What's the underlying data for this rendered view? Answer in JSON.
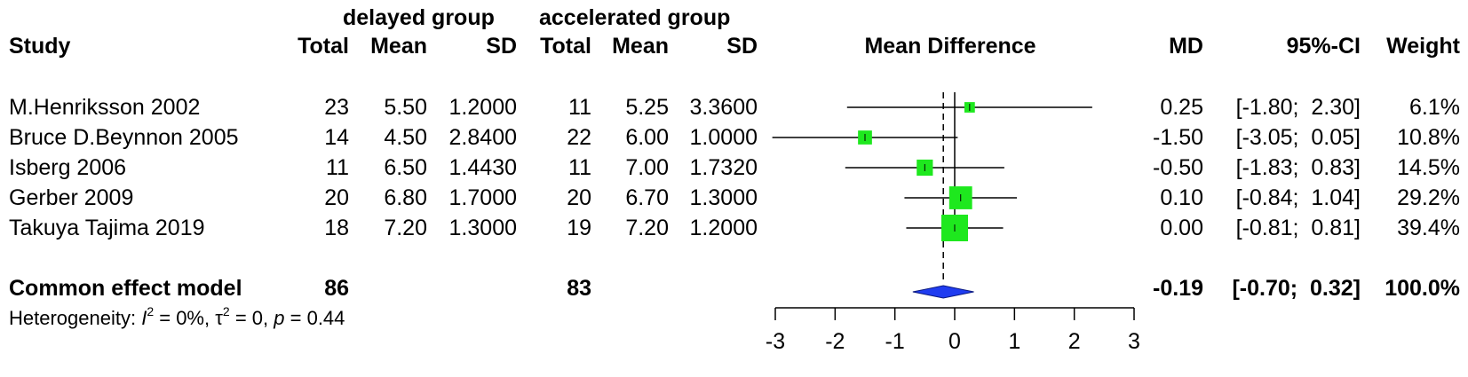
{
  "headers": {
    "group1": "delayed group",
    "group2": "accelerated group",
    "study": "Study",
    "total1": "Total",
    "mean1": "Mean",
    "sd1": "SD",
    "total2": "Total",
    "mean2": "Mean",
    "sd2": "SD",
    "plot": "Mean Difference",
    "md": "MD",
    "ci": "95%-CI",
    "weight": "Weight"
  },
  "studies": [
    {
      "study": "M.Henriksson  2002",
      "total1": "23",
      "mean1": "5.50",
      "sd1": "1.2000",
      "total2": "11",
      "mean2": "5.25",
      "sd2": "3.3600",
      "md": "0.25",
      "ci": "[-1.80;  2.30]",
      "weight": "6.1%"
    },
    {
      "study": "Bruce D.Beynnon 2005",
      "total1": "14",
      "mean1": "4.50",
      "sd1": "2.8400",
      "total2": "22",
      "mean2": "6.00",
      "sd2": "1.0000",
      "md": "-1.50",
      "ci": "[-3.05;  0.05]",
      "weight": "10.8%"
    },
    {
      "study": "Isberg 2006",
      "total1": "11",
      "mean1": "6.50",
      "sd1": "1.4430",
      "total2": "11",
      "mean2": "7.00",
      "sd2": "1.7320",
      "md": "-0.50",
      "ci": "[-1.83;  0.83]",
      "weight": "14.5%"
    },
    {
      "study": "Gerber 2009",
      "total1": "20",
      "mean1": "6.80",
      "sd1": "1.7000",
      "total2": "20",
      "mean2": "6.70",
      "sd2": "1.3000",
      "md": "0.10",
      "ci": "[-0.84;  1.04]",
      "weight": "29.2%"
    },
    {
      "study": "Takuya Tajima 2019",
      "total1": "18",
      "mean1": "7.20",
      "sd1": "1.3000",
      "total2": "19",
      "mean2": "7.20",
      "sd2": "1.2000",
      "md": "0.00",
      "ci": "[-0.81;  0.81]",
      "weight": "39.4%"
    }
  ],
  "pooled": {
    "label": "Common effect model",
    "total1": "86",
    "total2": "83",
    "md": "-0.19",
    "ci": "[-0.70;  0.32]",
    "weight": "100.0%"
  },
  "heterogeneity": {
    "prefix": "Heterogeneity: ",
    "i2_symbol": "I",
    "i2_value": " = 0%, ",
    "tau2_symbol": "τ",
    "tau2_value": " = 0, ",
    "p_symbol": "p",
    "p_value": " = 0.44",
    "exponent": "2"
  },
  "chart_data": {
    "type": "forest",
    "xlim": [
      -3,
      3
    ],
    "ticks": [
      -3,
      -2,
      -1,
      0,
      1,
      2,
      3
    ],
    "tick_labels": [
      "-3",
      "-2",
      "-1",
      "0",
      "1",
      "2",
      "3"
    ],
    "null_line": 0,
    "pooled_line": -0.19,
    "points": [
      {
        "md": 0.25,
        "lo": -1.8,
        "hi": 2.3,
        "weight": 6.1
      },
      {
        "md": -1.5,
        "lo": -3.05,
        "hi": 0.05,
        "weight": 10.8
      },
      {
        "md": -0.5,
        "lo": -1.83,
        "hi": 0.83,
        "weight": 14.5
      },
      {
        "md": 0.1,
        "lo": -0.84,
        "hi": 1.04,
        "weight": 29.2
      },
      {
        "md": 0.0,
        "lo": -0.81,
        "hi": 0.81,
        "weight": 39.4
      }
    ],
    "pooled": {
      "md": -0.19,
      "lo": -0.7,
      "hi": 0.32
    },
    "colors": {
      "square": "#1ee81e",
      "diamond": "#1f3cf0",
      "line": "#000000"
    }
  }
}
